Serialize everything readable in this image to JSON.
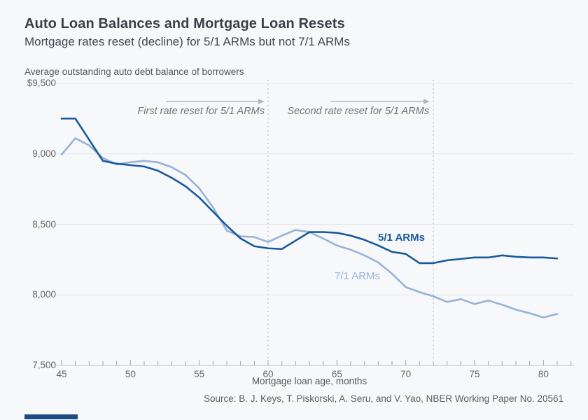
{
  "title": "Auto Loan Balances and Mortgage Loan Resets",
  "subtitle": "Mortgage rates reset (decline) for 5/1 ARMs but not 7/1 ARMs",
  "annotations": {
    "first_reset": "First rate reset for 5/1 ARMs",
    "second_reset": "Second rate reset for 5/1 ARMs"
  },
  "source": "Source: B. J. Keys, T. Piskorski, A. Seru, and V. Yao, NBER Working Paper No. 20561",
  "colors": {
    "background": "#f7f8fa",
    "series_5_1": "#185a9d",
    "series_7_1": "#96b3d9",
    "gridline": "#e4e6e9",
    "axis_line": "#c2c6cb",
    "tick": "#9fa5ab",
    "dashed_line": "#c9cdd2",
    "arrow": "#b3b7bc",
    "accent_bar": "#1c4d82"
  },
  "chart_data": {
    "type": "line",
    "title": "Auto Loan Balances and Mortgage Loan Resets",
    "xlabel": "Mortgage loan age, months",
    "ylabel": "Average outstanding auto debt balance of borrowers",
    "xlim": [
      45,
      81
    ],
    "ylim": [
      7500,
      9500
    ],
    "grid": true,
    "legend_position": "inline-labels",
    "reset_lines_x": [
      60,
      72
    ],
    "y_ticks": [
      {
        "value": 9500,
        "label": "$9,500"
      },
      {
        "value": 9000,
        "label": "9,000"
      },
      {
        "value": 8500,
        "label": "8,500"
      },
      {
        "value": 8000,
        "label": "8,000"
      },
      {
        "value": 7500,
        "label": "7,500"
      }
    ],
    "x_ticks": [
      {
        "value": 45,
        "label": "45"
      },
      {
        "value": 50,
        "label": "50"
      },
      {
        "value": 55,
        "label": "55"
      },
      {
        "value": 60,
        "label": "60"
      },
      {
        "value": 65,
        "label": "65"
      },
      {
        "value": 70,
        "label": "70"
      },
      {
        "value": 75,
        "label": "75"
      },
      {
        "value": 80,
        "label": "80"
      }
    ],
    "x": [
      45,
      46,
      47,
      48,
      49,
      50,
      51,
      52,
      53,
      54,
      55,
      56,
      57,
      58,
      59,
      60,
      61,
      62,
      63,
      64,
      65,
      66,
      67,
      68,
      69,
      70,
      71,
      72,
      73,
      74,
      75,
      76,
      77,
      78,
      79,
      80,
      81
    ],
    "series": [
      {
        "name": "5/1 ARMs",
        "color": "#185a9d",
        "values": [
          9250,
          9250,
          9100,
          8950,
          8930,
          8920,
          8910,
          8880,
          8830,
          8770,
          8690,
          8590,
          8490,
          8400,
          8345,
          8330,
          8325,
          8385,
          8445,
          8445,
          8440,
          8420,
          8390,
          8350,
          8305,
          8290,
          8225,
          8225,
          8245,
          8255,
          8265,
          8265,
          8280,
          8270,
          8265,
          8265,
          8258
        ]
      },
      {
        "name": "7/1 ARMs",
        "color": "#96b3d9",
        "values": [
          8995,
          9110,
          9060,
          8970,
          8925,
          8940,
          8950,
          8940,
          8905,
          8850,
          8755,
          8620,
          8455,
          8415,
          8410,
          8375,
          8420,
          8460,
          8445,
          8400,
          8350,
          8320,
          8280,
          8230,
          8150,
          8055,
          8020,
          7990,
          7950,
          7970,
          7935,
          7960,
          7930,
          7895,
          7870,
          7840,
          7865
        ]
      }
    ]
  }
}
